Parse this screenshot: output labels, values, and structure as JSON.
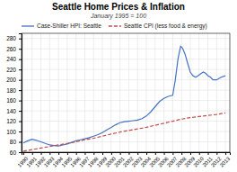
{
  "chart_data": {
    "type": "line",
    "title": "Seattle Home Prices & Inflation",
    "subtitle": "January 1995 = 100",
    "series": [
      {
        "name": "Case-Shiller HPI: Seattle",
        "color": "#4472c4",
        "line_style": "solid",
        "x": [
          1990,
          1990.5,
          1991,
          1991.5,
          1992,
          1992.5,
          1993,
          1993.5,
          1994,
          1994.5,
          1995,
          1995.5,
          1996,
          1996.5,
          1997,
          1997.5,
          1998,
          1998.5,
          1999,
          1999.5,
          2000,
          2000.5,
          2001,
          2001.5,
          2002,
          2002.5,
          2003,
          2003.5,
          2004,
          2004.5,
          2005,
          2005.5,
          2006,
          2006.5,
          2007,
          2007.3,
          2007.6,
          2007.9,
          2008.1,
          2008.4,
          2008.7,
          2009,
          2009.3,
          2009.6,
          2009.9,
          2010.2,
          2010.5,
          2010.8,
          2011,
          2011.3,
          2011.6,
          2012,
          2012.5,
          2013
        ],
        "values": [
          78,
          82,
          85,
          83,
          80,
          77,
          74,
          73,
          72,
          74,
          76,
          79,
          82,
          84,
          86,
          88,
          91,
          94,
          98,
          103,
          108,
          113,
          117,
          119,
          120,
          121,
          122,
          125,
          130,
          138,
          148,
          158,
          164,
          168,
          170,
          200,
          240,
          265,
          262,
          250,
          232,
          215,
          208,
          205,
          208,
          212,
          215,
          212,
          208,
          205,
          200,
          200,
          205,
          208
        ]
      },
      {
        "name": "Seattle CPI (less food & energy)",
        "color": "#c0504d",
        "line_style": "dashed",
        "x": [
          1990,
          1991,
          1992,
          1993,
          1994,
          1995,
          1996,
          1997,
          1998,
          1999,
          2000,
          2001,
          2002,
          2003,
          2004,
          2005,
          2006,
          2007,
          2008,
          2009,
          2010,
          2011,
          2012,
          2013
        ],
        "values": [
          62,
          65,
          68,
          71,
          74,
          77,
          80,
          84,
          87,
          91,
          95,
          99,
          102,
          105,
          108,
          112,
          116,
          120,
          124,
          127,
          129,
          131,
          133,
          136
        ]
      }
    ],
    "xlim": [
      1989.8,
      2013.5
    ],
    "xticks": [
      1990,
      1991,
      1992,
      1993,
      1994,
      1995,
      1996,
      1997,
      1998,
      1999,
      2000,
      2001,
      2002,
      2003,
      2004,
      2005,
      2006,
      2007,
      2008,
      2009,
      2010,
      2011,
      2012,
      2013
    ],
    "ylim": [
      60,
      290
    ],
    "yticks": [
      60,
      80,
      100,
      120,
      140,
      160,
      180,
      200,
      220,
      240,
      260,
      280
    ],
    "grid": true,
    "legend": "top"
  }
}
